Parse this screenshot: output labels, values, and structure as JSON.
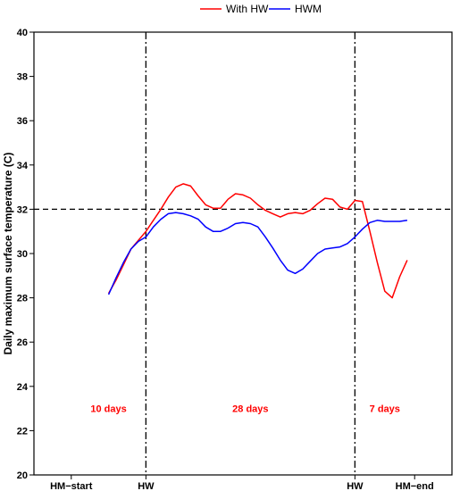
{
  "chart_data": {
    "type": "line",
    "title": "",
    "xlabel": "",
    "ylabel": "Daily maximum surface temperature (C)",
    "ylim": [
      20,
      40
    ],
    "xlim": [
      -10,
      46
    ],
    "yticks": [
      20,
      22,
      24,
      26,
      28,
      30,
      32,
      34,
      36,
      38,
      40
    ],
    "xticks": [
      {
        "x": -5,
        "label": "HM−start"
      },
      {
        "x": 5,
        "label": "HW"
      },
      {
        "x": 33,
        "label": "HW"
      },
      {
        "x": 41,
        "label": "HM−end"
      }
    ],
    "grid": false,
    "legend_position": "top-center",
    "series": [
      {
        "name": "With HW",
        "color": "#ff0000",
        "x": [
          0,
          1,
          2,
          3,
          4,
          5,
          6,
          7,
          8,
          9,
          10,
          11,
          12,
          13,
          14,
          15,
          16,
          17,
          18,
          19,
          20,
          21,
          22,
          23,
          24,
          25,
          26,
          27,
          28,
          29,
          30,
          31,
          32,
          33,
          34,
          35,
          36,
          37,
          38,
          39,
          40
        ],
        "y": [
          28.2,
          28.8,
          29.5,
          30.2,
          30.6,
          31.0,
          31.5,
          32.0,
          32.55,
          33.0,
          33.15,
          33.05,
          32.6,
          32.2,
          32.05,
          32.05,
          32.45,
          32.7,
          32.65,
          32.5,
          32.2,
          31.95,
          31.8,
          31.65,
          31.8,
          31.85,
          31.8,
          31.95,
          32.25,
          32.5,
          32.45,
          32.1,
          32.0,
          32.4,
          32.35,
          31.0,
          29.6,
          28.3,
          28.0,
          28.95,
          29.7
        ]
      },
      {
        "name": "HWM",
        "color": "#0000ff",
        "x": [
          0,
          1,
          2,
          3,
          4,
          5,
          6,
          7,
          8,
          9,
          10,
          11,
          12,
          13,
          14,
          15,
          16,
          17,
          18,
          19,
          20,
          21,
          22,
          23,
          24,
          25,
          26,
          27,
          28,
          29,
          30,
          31,
          32,
          33,
          34,
          35,
          36,
          37,
          38,
          39,
          40
        ],
        "y": [
          28.15,
          28.9,
          29.6,
          30.2,
          30.55,
          30.75,
          31.2,
          31.55,
          31.8,
          31.85,
          31.8,
          31.7,
          31.55,
          31.2,
          31.0,
          31.0,
          31.15,
          31.35,
          31.4,
          31.35,
          31.2,
          30.75,
          30.25,
          29.7,
          29.25,
          29.1,
          29.3,
          29.65,
          30.0,
          30.2,
          30.25,
          30.3,
          30.45,
          30.75,
          31.1,
          31.4,
          31.5,
          31.45,
          31.45,
          31.45,
          31.5
        ]
      }
    ],
    "reference_lines": [
      {
        "orientation": "horizontal",
        "value": 32,
        "style": "dashed"
      },
      {
        "orientation": "vertical",
        "value": 5,
        "style": "dash-dot"
      },
      {
        "orientation": "vertical",
        "value": 33,
        "style": "dash-dot"
      }
    ],
    "annotations": [
      {
        "text": "10 days",
        "x": 0,
        "y": 23,
        "color": "#ff0000"
      },
      {
        "text": "28 days",
        "x": 19,
        "y": 23,
        "color": "#ff0000"
      },
      {
        "text": "7 days",
        "x": 37,
        "y": 23,
        "color": "#ff0000"
      }
    ]
  }
}
